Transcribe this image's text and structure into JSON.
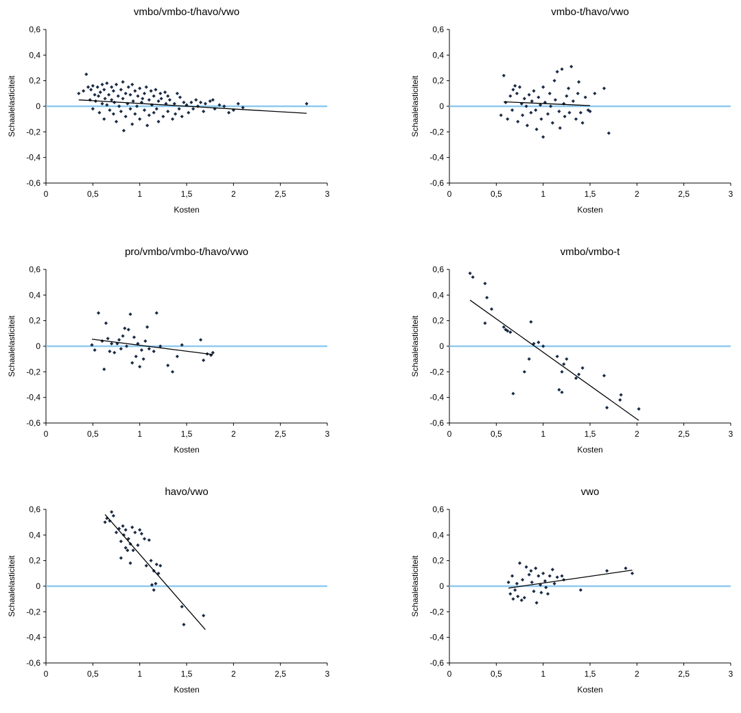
{
  "chart_data": [
    {
      "type": "scatter",
      "title": "vmbo/vmbo-t/havo/vwo",
      "xlabel": "Kosten",
      "ylabel": "Schaalelasticiteit",
      "xlim": [
        0,
        3
      ],
      "ylim": [
        -0.6,
        0.6
      ],
      "x_ticks": [
        "0",
        "0,5",
        "1",
        "1,5",
        "2",
        "2,5",
        "3"
      ],
      "y_ticks": [
        "0,6",
        "0,4",
        "0,2",
        "0",
        "-0,2",
        "-0,4",
        "-0,6"
      ],
      "trendline": [
        [
          0.35,
          0.05
        ],
        [
          2.78,
          -0.055
        ]
      ],
      "points": [
        [
          0.35,
          0.1
        ],
        [
          0.4,
          0.12
        ],
        [
          0.43,
          0.25
        ],
        [
          0.45,
          0.15
        ],
        [
          0.47,
          0.05
        ],
        [
          0.48,
          0.13
        ],
        [
          0.5,
          0.16
        ],
        [
          0.5,
          -0.02
        ],
        [
          0.52,
          0.09
        ],
        [
          0.53,
          0.04
        ],
        [
          0.55,
          0.15
        ],
        [
          0.56,
          0.08
        ],
        [
          0.57,
          -0.05
        ],
        [
          0.58,
          0.11
        ],
        [
          0.6,
          0.17
        ],
        [
          0.6,
          0.02
        ],
        [
          0.62,
          0.13
        ],
        [
          0.62,
          -0.1
        ],
        [
          0.63,
          0.06
        ],
        [
          0.65,
          0.18
        ],
        [
          0.65,
          0.01
        ],
        [
          0.67,
          0.09
        ],
        [
          0.68,
          -0.03
        ],
        [
          0.7,
          0.15
        ],
        [
          0.7,
          0.05
        ],
        [
          0.72,
          0.12
        ],
        [
          0.72,
          -0.06
        ],
        [
          0.73,
          0.03
        ],
        [
          0.75,
          0.17
        ],
        [
          0.75,
          -0.12
        ],
        [
          0.77,
          0.08
        ],
        [
          0.78,
          0.0
        ],
        [
          0.8,
          0.13
        ],
        [
          0.8,
          -0.04
        ],
        [
          0.82,
          0.19
        ],
        [
          0.82,
          0.06
        ],
        [
          0.83,
          -0.19
        ],
        [
          0.85,
          0.1
        ],
        [
          0.85,
          -0.08
        ],
        [
          0.87,
          0.02
        ],
        [
          0.88,
          0.15
        ],
        [
          0.9,
          -0.02
        ],
        [
          0.9,
          0.09
        ],
        [
          0.92,
          0.17
        ],
        [
          0.92,
          -0.14
        ],
        [
          0.93,
          0.04
        ],
        [
          0.95,
          0.12
        ],
        [
          0.95,
          -0.06
        ],
        [
          0.97,
          0.0
        ],
        [
          0.98,
          0.08
        ],
        [
          1.0,
          0.14
        ],
        [
          1.0,
          -0.1
        ],
        [
          1.02,
          0.03
        ],
        [
          1.03,
          0.06
        ],
        [
          1.05,
          -0.03
        ],
        [
          1.05,
          0.1
        ],
        [
          1.07,
          0.15
        ],
        [
          1.08,
          -0.15
        ],
        [
          1.1,
          0.05
        ],
        [
          1.1,
          -0.07
        ],
        [
          1.12,
          0.12
        ],
        [
          1.13,
          0.01
        ],
        [
          1.15,
          -0.05
        ],
        [
          1.15,
          0.08
        ],
        [
          1.17,
          0.13
        ],
        [
          1.18,
          -0.02
        ],
        [
          1.2,
          0.04
        ],
        [
          1.2,
          -0.12
        ],
        [
          1.22,
          0.1
        ],
        [
          1.23,
          0.06
        ],
        [
          1.25,
          -0.08
        ],
        [
          1.27,
          0.11
        ],
        [
          1.28,
          0.02
        ],
        [
          1.3,
          -0.04
        ],
        [
          1.3,
          0.08
        ],
        [
          1.32,
          0.05
        ],
        [
          1.35,
          -0.1
        ],
        [
          1.37,
          0.02
        ],
        [
          1.38,
          -0.06
        ],
        [
          1.4,
          0.1
        ],
        [
          1.42,
          -0.02
        ],
        [
          1.43,
          0.07
        ],
        [
          1.45,
          -0.08
        ],
        [
          1.47,
          0.03
        ],
        [
          1.5,
          0.01
        ],
        [
          1.52,
          -0.05
        ],
        [
          1.55,
          0.03
        ],
        [
          1.57,
          -0.02
        ],
        [
          1.6,
          0.05
        ],
        [
          1.62,
          0.0
        ],
        [
          1.65,
          0.03
        ],
        [
          1.68,
          -0.04
        ],
        [
          1.7,
          0.02
        ],
        [
          1.75,
          0.04
        ],
        [
          1.78,
          0.05
        ],
        [
          1.8,
          -0.02
        ],
        [
          1.85,
          0.01
        ],
        [
          1.9,
          0.0
        ],
        [
          1.95,
          -0.05
        ],
        [
          2.0,
          -0.03
        ],
        [
          2.05,
          0.02
        ],
        [
          2.1,
          -0.01
        ],
        [
          2.78,
          0.02
        ]
      ]
    },
    {
      "type": "scatter",
      "title": "vmbo-t/havo/vwo",
      "xlabel": "Kosten",
      "ylabel": "Schaalelasticiteit",
      "xlim": [
        0,
        3
      ],
      "ylim": [
        -0.6,
        0.6
      ],
      "x_ticks": [
        "0",
        "0,5",
        "1",
        "1,5",
        "2",
        "2,5",
        "3"
      ],
      "y_ticks": [
        "0,6",
        "0,4",
        "0,2",
        "0",
        "-0,2",
        "-0,4",
        "-0,6"
      ],
      "trendline": [
        [
          0.58,
          0.035
        ],
        [
          1.5,
          0.005
        ]
      ],
      "points": [
        [
          0.55,
          -0.07
        ],
        [
          0.58,
          0.24
        ],
        [
          0.6,
          0.03
        ],
        [
          0.62,
          -0.1
        ],
        [
          0.65,
          0.08
        ],
        [
          0.67,
          -0.03
        ],
        [
          0.68,
          0.13
        ],
        [
          0.7,
          0.16
        ],
        [
          0.72,
          0.1
        ],
        [
          0.73,
          -0.12
        ],
        [
          0.75,
          0.15
        ],
        [
          0.77,
          0.02
        ],
        [
          0.78,
          -0.07
        ],
        [
          0.8,
          0.06
        ],
        [
          0.82,
          0.0
        ],
        [
          0.83,
          -0.15
        ],
        [
          0.85,
          0.09
        ],
        [
          0.87,
          -0.05
        ],
        [
          0.88,
          0.04
        ],
        [
          0.9,
          0.12
        ],
        [
          0.92,
          -0.03
        ],
        [
          0.93,
          -0.18
        ],
        [
          0.95,
          0.07
        ],
        [
          0.97,
          0.01
        ],
        [
          0.98,
          -0.1
        ],
        [
          1.0,
          0.15
        ],
        [
          1.0,
          -0.24
        ],
        [
          1.02,
          0.03
        ],
        [
          1.05,
          -0.06
        ],
        [
          1.07,
          0.1
        ],
        [
          1.08,
          0.0
        ],
        [
          1.1,
          -0.13
        ],
        [
          1.12,
          0.2
        ],
        [
          1.13,
          0.05
        ],
        [
          1.15,
          0.27
        ],
        [
          1.17,
          -0.04
        ],
        [
          1.18,
          -0.17
        ],
        [
          1.2,
          0.29
        ],
        [
          1.22,
          0.02
        ],
        [
          1.23,
          -0.08
        ],
        [
          1.25,
          0.08
        ],
        [
          1.27,
          0.14
        ],
        [
          1.28,
          -0.05
        ],
        [
          1.3,
          0.31
        ],
        [
          1.32,
          0.04
        ],
        [
          1.35,
          -0.1
        ],
        [
          1.37,
          0.1
        ],
        [
          1.38,
          0.19
        ],
        [
          1.4,
          -0.05
        ],
        [
          1.42,
          -0.13
        ],
        [
          1.45,
          0.07
        ],
        [
          1.48,
          -0.03
        ],
        [
          1.5,
          -0.04
        ],
        [
          1.55,
          0.1
        ],
        [
          1.65,
          0.14
        ],
        [
          1.7,
          -0.21
        ]
      ]
    },
    {
      "type": "scatter",
      "title": "pro/vmbo/vmbo-t/havo/vwo",
      "xlabel": "Kosten",
      "ylabel": "Schaalelasticiteit",
      "xlim": [
        0,
        3
      ],
      "ylim": [
        -0.6,
        0.6
      ],
      "x_ticks": [
        "0",
        "0,5",
        "1",
        "1,5",
        "2",
        "2,5",
        "3"
      ],
      "y_ticks": [
        "0,6",
        "0,4",
        "0,2",
        "0",
        "-0,2",
        "-0,4",
        "-0,6"
      ],
      "trendline": [
        [
          0.49,
          0.055
        ],
        [
          1.78,
          -0.065
        ]
      ],
      "points": [
        [
          0.49,
          0.01
        ],
        [
          0.52,
          -0.03
        ],
        [
          0.56,
          0.26
        ],
        [
          0.6,
          0.04
        ],
        [
          0.62,
          -0.18
        ],
        [
          0.64,
          0.18
        ],
        [
          0.66,
          0.06
        ],
        [
          0.68,
          -0.04
        ],
        [
          0.7,
          0.02
        ],
        [
          0.73,
          -0.05
        ],
        [
          0.76,
          0.02
        ],
        [
          0.78,
          0.05
        ],
        [
          0.8,
          -0.02
        ],
        [
          0.82,
          0.08
        ],
        [
          0.84,
          0.14
        ],
        [
          0.86,
          0.0
        ],
        [
          0.88,
          0.13
        ],
        [
          0.9,
          0.25
        ],
        [
          0.92,
          -0.13
        ],
        [
          0.94,
          0.07
        ],
        [
          0.96,
          -0.08
        ],
        [
          0.98,
          0.02
        ],
        [
          1.0,
          -0.16
        ],
        [
          1.02,
          -0.03
        ],
        [
          1.04,
          -0.1
        ],
        [
          1.06,
          0.04
        ],
        [
          1.08,
          0.15
        ],
        [
          1.1,
          -0.02
        ],
        [
          1.15,
          -0.04
        ],
        [
          1.18,
          0.26
        ],
        [
          1.22,
          0.0
        ],
        [
          1.3,
          -0.15
        ],
        [
          1.35,
          -0.2
        ],
        [
          1.4,
          -0.08
        ],
        [
          1.45,
          0.01
        ],
        [
          1.65,
          0.05
        ],
        [
          1.68,
          -0.11
        ],
        [
          1.72,
          -0.06
        ],
        [
          1.76,
          -0.07
        ],
        [
          1.78,
          -0.05
        ]
      ]
    },
    {
      "type": "scatter",
      "title": "vmbo/vmbo-t",
      "xlabel": "Kosten",
      "ylabel": "Schaalelasticiteit",
      "xlim": [
        0,
        3
      ],
      "ylim": [
        -0.6,
        0.6
      ],
      "x_ticks": [
        "0",
        "0,5",
        "1",
        "1,5",
        "2",
        "2,5",
        "3"
      ],
      "y_ticks": [
        "0,6",
        "0,4",
        "0,2",
        "0",
        "-0,2",
        "-0,4",
        "-0,6"
      ],
      "trendline": [
        [
          0.22,
          0.36
        ],
        [
          2.02,
          -0.58
        ]
      ],
      "points": [
        [
          0.22,
          0.57
        ],
        [
          0.25,
          0.54
        ],
        [
          0.38,
          0.49
        ],
        [
          0.4,
          0.38
        ],
        [
          0.38,
          0.18
        ],
        [
          0.45,
          0.29
        ],
        [
          0.58,
          0.15
        ],
        [
          0.6,
          0.13
        ],
        [
          0.62,
          0.12
        ],
        [
          0.65,
          0.11
        ],
        [
          0.68,
          -0.37
        ],
        [
          0.8,
          -0.2
        ],
        [
          0.85,
          -0.1
        ],
        [
          0.87,
          0.19
        ],
        [
          0.9,
          0.02
        ],
        [
          0.95,
          0.03
        ],
        [
          1.0,
          0.0
        ],
        [
          1.15,
          -0.08
        ],
        [
          1.17,
          -0.34
        ],
        [
          1.2,
          -0.2
        ],
        [
          1.2,
          -0.36
        ],
        [
          1.22,
          -0.14
        ],
        [
          1.25,
          -0.1
        ],
        [
          1.35,
          -0.25
        ],
        [
          1.38,
          -0.22
        ],
        [
          1.42,
          -0.17
        ],
        [
          1.65,
          -0.23
        ],
        [
          1.68,
          -0.48
        ],
        [
          1.82,
          -0.42
        ],
        [
          1.83,
          -0.38
        ],
        [
          2.02,
          -0.49
        ]
      ]
    },
    {
      "type": "scatter",
      "title": "havo/vwo",
      "xlabel": "Kosten",
      "ylabel": "Schaalelasticiteit",
      "xlim": [
        0,
        3
      ],
      "ylim": [
        -0.6,
        0.6
      ],
      "x_ticks": [
        "0",
        "0,5",
        "1",
        "1,5",
        "2",
        "2,5",
        "3"
      ],
      "y_ticks": [
        "0,6",
        "0,4",
        "0,2",
        "0",
        "-0,2",
        "-0,4",
        "-0,6"
      ],
      "trendline": [
        [
          0.63,
          0.56
        ],
        [
          1.7,
          -0.34
        ]
      ],
      "points": [
        [
          0.63,
          0.5
        ],
        [
          0.65,
          0.53
        ],
        [
          0.68,
          0.51
        ],
        [
          0.7,
          0.58
        ],
        [
          0.72,
          0.55
        ],
        [
          0.75,
          0.42
        ],
        [
          0.78,
          0.45
        ],
        [
          0.8,
          0.35
        ],
        [
          0.8,
          0.22
        ],
        [
          0.82,
          0.47
        ],
        [
          0.83,
          0.4
        ],
        [
          0.85,
          0.3
        ],
        [
          0.85,
          0.44
        ],
        [
          0.87,
          0.28
        ],
        [
          0.88,
          0.37
        ],
        [
          0.9,
          0.33
        ],
        [
          0.9,
          0.18
        ],
        [
          0.92,
          0.46
        ],
        [
          0.93,
          0.28
        ],
        [
          0.95,
          0.42
        ],
        [
          0.98,
          0.32
        ],
        [
          1.0,
          0.44
        ],
        [
          1.02,
          0.41
        ],
        [
          1.05,
          0.37
        ],
        [
          1.07,
          0.16
        ],
        [
          1.1,
          0.36
        ],
        [
          1.12,
          0.2
        ],
        [
          1.13,
          0.01
        ],
        [
          1.15,
          -0.03
        ],
        [
          1.15,
          0.12
        ],
        [
          1.17,
          0.02
        ],
        [
          1.18,
          0.17
        ],
        [
          1.2,
          0.1
        ],
        [
          1.22,
          0.16
        ],
        [
          1.45,
          -0.16
        ],
        [
          1.47,
          -0.3
        ],
        [
          1.68,
          -0.23
        ]
      ]
    },
    {
      "type": "scatter",
      "title": "vwo",
      "xlabel": "Kosten",
      "ylabel": "Schaalelasticiteit",
      "xlim": [
        0,
        3
      ],
      "ylim": [
        -0.6,
        0.6
      ],
      "x_ticks": [
        "0",
        "0,5",
        "1",
        "1,5",
        "2",
        "2,5",
        "3"
      ],
      "y_ticks": [
        "0,6",
        "0,4",
        "0,2",
        "0",
        "-0,2",
        "-0,4",
        "-0,6"
      ],
      "trendline": [
        [
          0.63,
          -0.015
        ],
        [
          1.95,
          0.125
        ]
      ],
      "points": [
        [
          0.63,
          0.03
        ],
        [
          0.65,
          -0.06
        ],
        [
          0.67,
          0.08
        ],
        [
          0.68,
          -0.1
        ],
        [
          0.7,
          -0.03
        ],
        [
          0.72,
          0.02
        ],
        [
          0.73,
          -0.08
        ],
        [
          0.75,
          0.18
        ],
        [
          0.77,
          -0.11
        ],
        [
          0.78,
          0.05
        ],
        [
          0.8,
          -0.09
        ],
        [
          0.82,
          0.15
        ],
        [
          0.85,
          0.09
        ],
        [
          0.87,
          0.12
        ],
        [
          0.88,
          0.03
        ],
        [
          0.9,
          -0.04
        ],
        [
          0.92,
          0.14
        ],
        [
          0.93,
          -0.13
        ],
        [
          0.95,
          0.08
        ],
        [
          0.97,
          0.01
        ],
        [
          0.98,
          -0.05
        ],
        [
          1.0,
          0.1
        ],
        [
          1.02,
          0.04
        ],
        [
          1.03,
          -0.01
        ],
        [
          1.05,
          -0.06
        ],
        [
          1.07,
          0.08
        ],
        [
          1.1,
          0.13
        ],
        [
          1.12,
          0.02
        ],
        [
          1.15,
          0.07
        ],
        [
          1.2,
          0.08
        ],
        [
          1.22,
          0.05
        ],
        [
          1.4,
          -0.03
        ],
        [
          1.68,
          0.12
        ],
        [
          1.88,
          0.14
        ],
        [
          1.95,
          0.1
        ]
      ]
    }
  ],
  "colors": {
    "points": "#1a2b45",
    "trendline": "#000000",
    "zero_line": "#8ec9f0",
    "axis": "#000000"
  }
}
